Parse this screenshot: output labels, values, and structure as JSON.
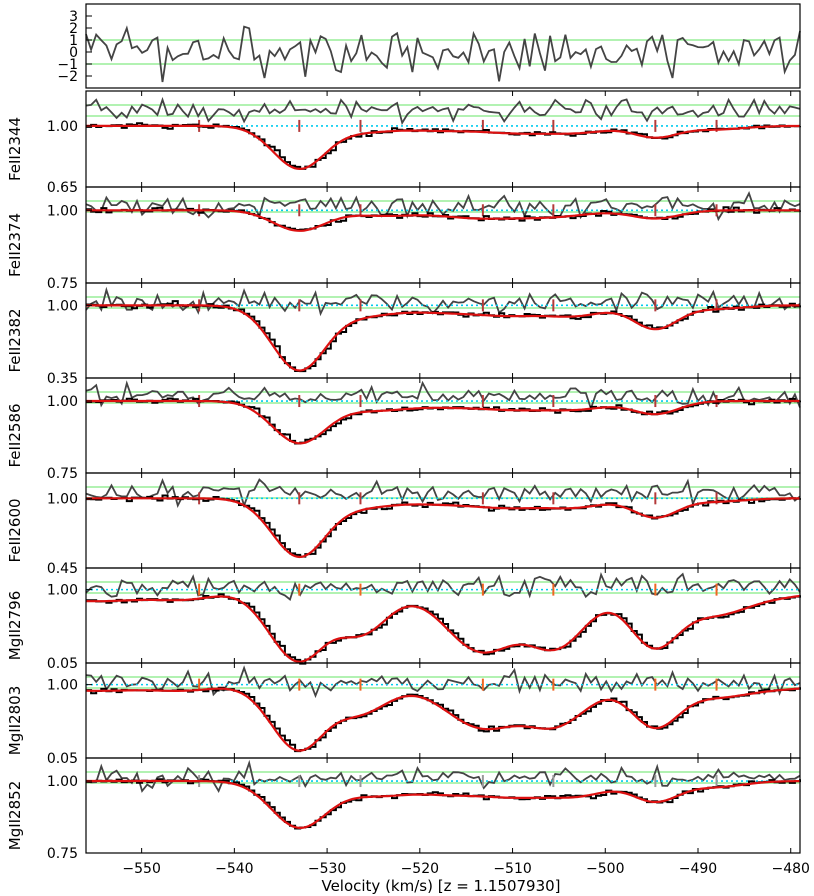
{
  "chart_data": {
    "type": "line",
    "xlabel": "Velocity (km/s) [z = 1.1507930]",
    "xlim": [
      -556,
      -479
    ],
    "x_ticks": [
      -550,
      -540,
      -530,
      -520,
      -510,
      -500,
      -490,
      -480
    ],
    "x_tick_labels": [
      "−550",
      "−540",
      "−530",
      "−520",
      "−510",
      "−500",
      "−490",
      "−480"
    ],
    "colors": {
      "data": "#000000",
      "model": "#dd1111",
      "residual": "#444444",
      "sigma_lines": "#99ee99",
      "continuum": "#00ccee"
    },
    "residual_panel": {
      "ylim": [
        -3,
        4
      ],
      "y_ticks": [
        3,
        2,
        1,
        0,
        -1,
        -2
      ],
      "y_tick_labels": [
        "3",
        "2",
        "1",
        "0",
        "−1",
        "−2"
      ],
      "sigma_bands": [
        -1,
        1
      ]
    },
    "components": [
      -543.8,
      -533.0,
      -526.4,
      -513.2,
      -505.6,
      -494.6,
      -488.0
    ],
    "panels": [
      {
        "name": "FeII2344",
        "label": "FeII2344",
        "ylim": [
          0.65,
          1.2
        ],
        "y_ticks": [
          1.0,
          0.65
        ],
        "y_tick_labels": [
          "1.00",
          "0.65"
        ],
        "tick_color": "#b33a3a",
        "components": [
          {
            "v": -533.0,
            "depth": 0.245,
            "width": 2.8
          },
          {
            "v": -526.0,
            "depth": 0.03,
            "width": 3.0
          },
          {
            "v": -518.0,
            "depth": 0.025,
            "width": 4.0
          },
          {
            "v": -509.0,
            "depth": 0.04,
            "width": 4.0
          },
          {
            "v": -502.5,
            "depth": 0.03,
            "width": 3.0
          },
          {
            "v": -494.6,
            "depth": 0.065,
            "width": 2.4
          },
          {
            "v": -488.0,
            "depth": 0.02,
            "width": 3.0
          }
        ]
      },
      {
        "name": "FeII2374",
        "label": "FeII2374",
        "ylim": [
          0.75,
          1.08
        ],
        "y_ticks": [
          1.0,
          0.75
        ],
        "y_tick_labels": [
          "1.00",
          "0.75"
        ],
        "tick_color": "#b33a3a",
        "components": [
          {
            "v": -533.0,
            "depth": 0.07,
            "width": 2.8
          },
          {
            "v": -524.0,
            "depth": 0.018,
            "width": 3.5
          },
          {
            "v": -514.0,
            "depth": 0.025,
            "width": 4.0
          },
          {
            "v": -506.0,
            "depth": 0.022,
            "width": 4.0
          },
          {
            "v": -494.6,
            "depth": 0.028,
            "width": 2.6
          }
        ]
      },
      {
        "name": "FeII2382",
        "label": "FeII2382",
        "ylim": [
          0.35,
          1.2
        ],
        "y_ticks": [
          1.0,
          0.35
        ],
        "y_tick_labels": [
          "1.00",
          "0.35"
        ],
        "tick_color": "#b33a3a",
        "components": [
          {
            "v": -533.0,
            "depth": 0.58,
            "width": 2.9
          },
          {
            "v": -526.0,
            "depth": 0.08,
            "width": 3.2
          },
          {
            "v": -518.0,
            "depth": 0.055,
            "width": 4.0
          },
          {
            "v": -510.0,
            "depth": 0.085,
            "width": 4.0
          },
          {
            "v": -503.0,
            "depth": 0.08,
            "width": 3.0
          },
          {
            "v": -494.6,
            "depth": 0.21,
            "width": 2.4
          },
          {
            "v": -488.0,
            "depth": 0.03,
            "width": 3.0
          }
        ]
      },
      {
        "name": "FeII2586",
        "label": "FeII2586",
        "ylim": [
          0.75,
          1.08
        ],
        "y_ticks": [
          1.0,
          0.75
        ],
        "y_tick_labels": [
          "1.00",
          "0.75"
        ],
        "tick_color": "#b33a3a",
        "components": [
          {
            "v": -533.0,
            "depth": 0.145,
            "width": 2.9
          },
          {
            "v": -525.0,
            "depth": 0.03,
            "width": 3.5
          },
          {
            "v": -517.0,
            "depth": 0.018,
            "width": 4.0
          },
          {
            "v": -509.0,
            "depth": 0.028,
            "width": 4.0
          },
          {
            "v": -502.5,
            "depth": 0.022,
            "width": 3.0
          },
          {
            "v": -494.6,
            "depth": 0.045,
            "width": 2.5
          }
        ]
      },
      {
        "name": "FeII2600",
        "label": "FeII2600",
        "ylim": [
          0.45,
          1.2
        ],
        "y_ticks": [
          1.0,
          0.45
        ],
        "y_tick_labels": [
          "1.00",
          "0.45"
        ],
        "tick_color": "#b33a3a",
        "components": [
          {
            "v": -533.0,
            "depth": 0.46,
            "width": 2.9
          },
          {
            "v": -526.0,
            "depth": 0.06,
            "width": 3.2
          },
          {
            "v": -518.0,
            "depth": 0.04,
            "width": 4.0
          },
          {
            "v": -510.0,
            "depth": 0.07,
            "width": 4.0
          },
          {
            "v": -503.0,
            "depth": 0.06,
            "width": 3.0
          },
          {
            "v": -494.6,
            "depth": 0.15,
            "width": 2.4
          },
          {
            "v": -488.0,
            "depth": 0.025,
            "width": 3.0
          }
        ]
      },
      {
        "name": "MgII2796",
        "label": "MgII2796",
        "ylim": [
          0.05,
          1.28
        ],
        "y_ticks": [
          1.0,
          0.05
        ],
        "y_tick_labels": [
          "1.00",
          "0.05"
        ],
        "tick_color": "#ee6622",
        "components": [
          {
            "v": -555.0,
            "depth": 0.15,
            "width": 7.0
          },
          {
            "v": -545.0,
            "depth": 0.08,
            "width": 3.0
          },
          {
            "v": -533.0,
            "depth": 0.93,
            "width": 3.2
          },
          {
            "v": -526.4,
            "depth": 0.55,
            "width": 3.0
          },
          {
            "v": -513.2,
            "depth": 0.8,
            "width": 4.0
          },
          {
            "v": -505.6,
            "depth": 0.75,
            "width": 3.5
          },
          {
            "v": -494.6,
            "depth": 0.75,
            "width": 2.8
          },
          {
            "v": -488.0,
            "depth": 0.3,
            "width": 3.5
          },
          {
            "v": -481.0,
            "depth": 0.08,
            "width": 4.0
          }
        ]
      },
      {
        "name": "MgII2803",
        "label": "MgII2803",
        "ylim": [
          0.05,
          1.28
        ],
        "y_ticks": [
          1.0,
          0.05
        ],
        "y_tick_labels": [
          "1.00",
          "0.05"
        ],
        "tick_color": "#ee6622",
        "components": [
          {
            "v": -555.0,
            "depth": 0.08,
            "width": 7.0
          },
          {
            "v": -545.0,
            "depth": 0.05,
            "width": 3.0
          },
          {
            "v": -533.0,
            "depth": 0.85,
            "width": 3.0
          },
          {
            "v": -526.4,
            "depth": 0.35,
            "width": 3.0
          },
          {
            "v": -513.2,
            "depth": 0.55,
            "width": 4.0
          },
          {
            "v": -505.6,
            "depth": 0.52,
            "width": 3.5
          },
          {
            "v": -494.6,
            "depth": 0.55,
            "width": 2.6
          },
          {
            "v": -488.0,
            "depth": 0.15,
            "width": 3.5
          },
          {
            "v": -481.0,
            "depth": 0.05,
            "width": 4.0
          }
        ]
      },
      {
        "name": "MgII2852",
        "label": "MgII2852",
        "ylim": [
          0.75,
          1.08
        ],
        "y_ticks": [
          1.0,
          0.75
        ],
        "y_tick_labels": [
          "1.00",
          "0.75"
        ],
        "tick_color": "#999999",
        "components": [
          {
            "v": -533.0,
            "depth": 0.16,
            "width": 3.0
          },
          {
            "v": -525.0,
            "depth": 0.045,
            "width": 3.5
          },
          {
            "v": -517.0,
            "depth": 0.04,
            "width": 4.0
          },
          {
            "v": -509.0,
            "depth": 0.05,
            "width": 4.0
          },
          {
            "v": -502.5,
            "depth": 0.04,
            "width": 3.0
          },
          {
            "v": -494.6,
            "depth": 0.07,
            "width": 2.5
          },
          {
            "v": -488.0,
            "depth": 0.02,
            "width": 3.0
          }
        ]
      }
    ]
  }
}
